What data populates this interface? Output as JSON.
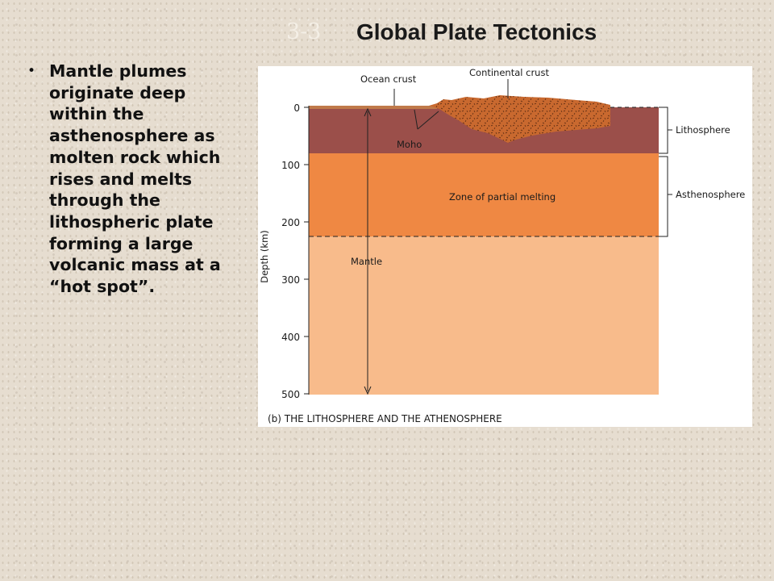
{
  "header": {
    "slide_number": "3-3",
    "title": "Global Plate Tectonics"
  },
  "bullet": {
    "text": "Mantle plumes originate deep within the asthenosphere as molten rock which rises and melts through the lithospheric plate forming a large volcanic mass at a “hot spot”."
  },
  "diagram": {
    "labels": {
      "ocean_crust": "Ocean crust",
      "continental_crust": "Continental crust",
      "moho": "Moho",
      "lithosphere": "Lithosphere",
      "asthenosphere": "Asthenosphere",
      "zone_partial_melting": "Zone of partial melting",
      "mantle": "Mantle"
    },
    "axis_title": "Depth (km)",
    "depth_ticks": [
      "0",
      "100",
      "200",
      "300",
      "400",
      "500"
    ],
    "caption": "(b) THE LITHOSPHERE AND THE ATHENOSPHERE",
    "colors": {
      "lithosphere": "#9b4f4a",
      "asthenosphere": "#ef8843",
      "mantle": "#f8bb8b",
      "continental_crust": "#c9692f",
      "ocean_crust": "#c07a4a"
    }
  }
}
